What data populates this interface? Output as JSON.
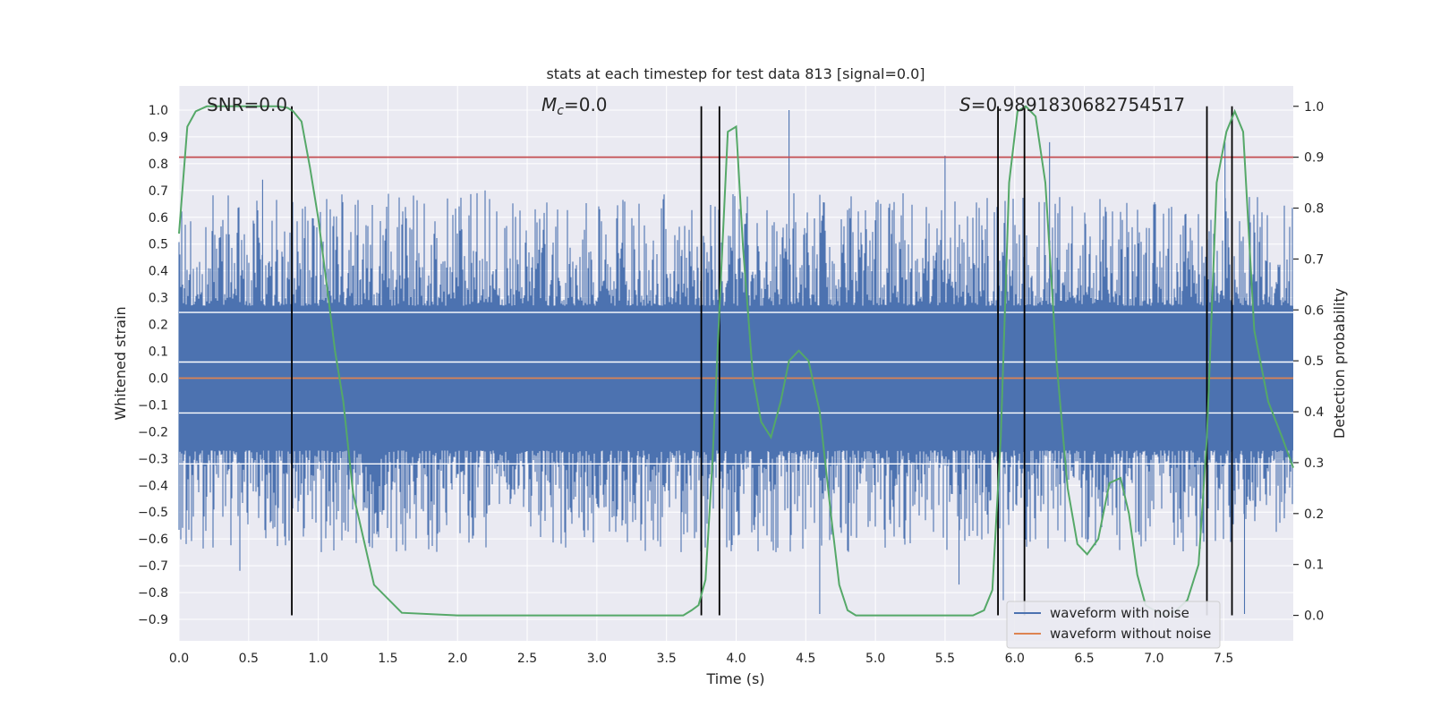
{
  "chart_data": {
    "type": "line",
    "title": "stats at each timestep for test data 813 [signal=0.0]",
    "xlabel": "Time (s)",
    "ylabel": "Whitened strain",
    "ylabel_right": "Detection probability",
    "xlim": [
      0.0,
      8.0
    ],
    "ylim": [
      -0.98,
      1.09
    ],
    "ylim_right": [
      -0.05,
      1.04
    ],
    "xticks": [
      "0.0",
      "0.5",
      "1.0",
      "1.5",
      "2.0",
      "2.5",
      "3.0",
      "3.5",
      "4.0",
      "4.5",
      "5.0",
      "5.5",
      "6.0",
      "6.5",
      "7.0",
      "7.5"
    ],
    "yticks": [
      "1.0",
      "0.9",
      "0.8",
      "0.7",
      "0.6",
      "0.5",
      "0.4",
      "0.3",
      "0.2",
      "0.1",
      "0.0",
      "−0.1",
      "−0.2",
      "−0.3",
      "−0.4",
      "−0.5",
      "−0.6",
      "−0.7",
      "−0.8",
      "−0.9"
    ],
    "yticks_right": [
      "1.0",
      "0.9",
      "0.8",
      "0.7",
      "0.6",
      "0.5",
      "0.4",
      "0.3",
      "0.2",
      "0.1",
      "0.0"
    ],
    "annotations": {
      "snr": "SNR=0.0",
      "mc_symbol": "M",
      "mc_sub": "c",
      "mc_value": "=0.0",
      "s_symbol": "S",
      "s_value": "=0.9891830682754517"
    },
    "threshold": 0.9,
    "vertical_lines": [
      0.81,
      3.75,
      3.88,
      5.88,
      6.07,
      7.38,
      7.56
    ],
    "series": [
      {
        "name": "waveform with noise",
        "color": "#4c72b0",
        "axis": "left",
        "note": "dense noise, amplitude ~0.3 core with peaks up to 1.0"
      },
      {
        "name": "waveform without noise",
        "color": "#dd8452",
        "axis": "left",
        "values": [
          0.0,
          0.0
        ]
      },
      {
        "name": "detection probability",
        "color": "#55a868",
        "axis": "right",
        "x": [
          0.0,
          0.06,
          0.12,
          0.2,
          0.3,
          0.4,
          0.5,
          0.6,
          0.7,
          0.78,
          0.82,
          0.88,
          0.94,
          1.0,
          1.06,
          1.12,
          1.18,
          1.25,
          1.4,
          1.6,
          2.0,
          2.5,
          3.0,
          3.4,
          3.55,
          3.62,
          3.68,
          3.73,
          3.78,
          3.83,
          3.88,
          3.94,
          4.0,
          4.05,
          4.12,
          4.18,
          4.25,
          4.32,
          4.38,
          4.45,
          4.52,
          4.6,
          4.68,
          4.74,
          4.8,
          4.86,
          4.95,
          5.1,
          5.4,
          5.7,
          5.78,
          5.84,
          5.9,
          5.96,
          6.02,
          6.08,
          6.15,
          6.22,
          6.3,
          6.38,
          6.45,
          6.52,
          6.6,
          6.68,
          6.76,
          6.82,
          6.88,
          6.94,
          7.0,
          7.08,
          7.16,
          7.24,
          7.32,
          7.38,
          7.45,
          7.52,
          7.58,
          7.64,
          7.72,
          7.82,
          7.92,
          8.0
        ],
        "values": [
          0.75,
          0.96,
          0.99,
          1.0,
          1.0,
          1.0,
          1.0,
          1.0,
          1.0,
          0.997,
          0.99,
          0.97,
          0.88,
          0.78,
          0.65,
          0.52,
          0.42,
          0.24,
          0.06,
          0.005,
          0.0,
          0.0,
          0.0,
          0.0,
          0.0,
          0.0,
          0.01,
          0.02,
          0.07,
          0.3,
          0.6,
          0.95,
          0.96,
          0.72,
          0.47,
          0.38,
          0.35,
          0.42,
          0.5,
          0.52,
          0.5,
          0.4,
          0.2,
          0.06,
          0.01,
          0.0,
          0.0,
          0.0,
          0.0,
          0.0,
          0.01,
          0.05,
          0.35,
          0.85,
          0.99,
          1.0,
          0.98,
          0.85,
          0.5,
          0.25,
          0.14,
          0.12,
          0.15,
          0.26,
          0.27,
          0.2,
          0.08,
          0.02,
          0.01,
          0.0,
          0.01,
          0.03,
          0.1,
          0.35,
          0.85,
          0.95,
          0.99,
          0.95,
          0.56,
          0.42,
          0.35,
          0.29
        ]
      }
    ],
    "legend": {
      "position": "bottom-right",
      "entries": [
        "waveform with noise",
        "waveform without noise"
      ]
    }
  }
}
